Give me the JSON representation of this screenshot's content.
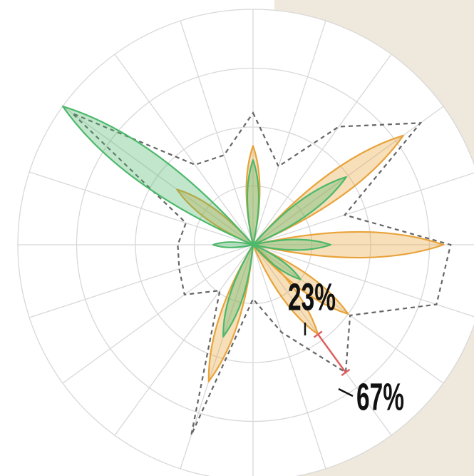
{
  "chart_data": {
    "type": "polar",
    "categories": [
      null,
      null,
      null,
      null,
      null,
      null,
      null,
      null,
      null,
      null,
      null,
      null,
      null,
      null,
      null,
      null,
      null,
      null,
      null,
      null
    ],
    "rlim": [
      0,
      100
    ],
    "rticks": [
      25,
      50,
      75,
      100
    ],
    "grid": true,
    "series": [
      {
        "style": "dashed",
        "color": "#666666",
        "values": [
          56,
          35,
          62,
          88,
          41,
          84,
          82,
          51,
          67,
          39,
          23,
          85,
          24,
          36,
          33,
          32,
          30,
          95,
          42,
          40
        ]
      },
      {
        "style": "petal",
        "color": "#e8a33a",
        "values": [
          42,
          0,
          0,
          79,
          0,
          81,
          0,
          50,
          47,
          0,
          0,
          61,
          0,
          0,
          0,
          0,
          0,
          40,
          0,
          0
        ]
      },
      {
        "style": "petal",
        "color": "#4cb86a",
        "values": [
          36,
          0,
          0,
          49,
          0,
          33,
          0,
          25,
          0,
          0,
          0,
          41,
          0,
          0,
          0,
          17,
          0,
          100,
          0,
          0
        ]
      }
    ],
    "annotations": [
      "23%",
      "67%"
    ]
  }
}
